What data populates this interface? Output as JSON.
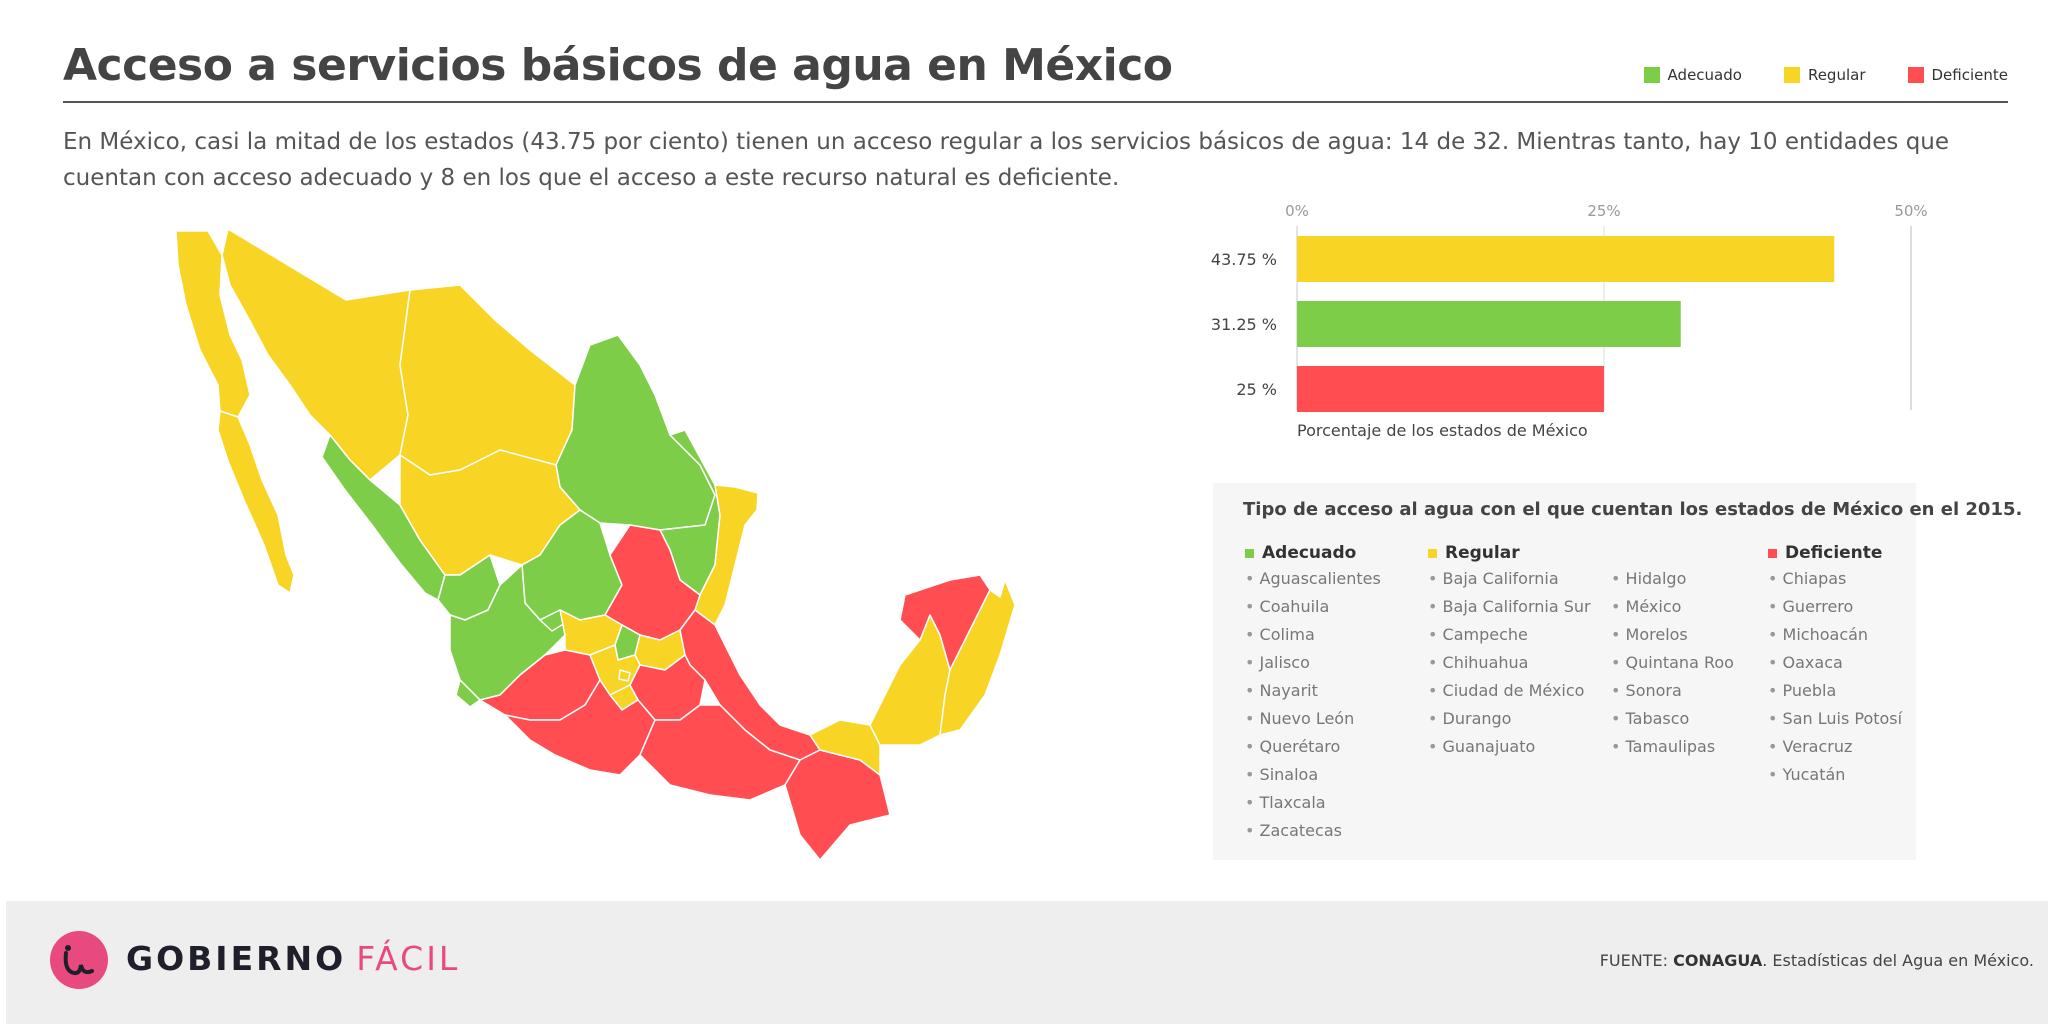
{
  "title": "Acceso a servicios básicos de agua en México",
  "subtitle": "En México, casi la mitad de los estados (43.75 por ciento) tienen un acceso regular a los servicios básicos de agua: 14 de 32. Mientras tanto, hay 10 entidades que cuentan con acceso adecuado y 8 en los que el acceso a este recurso natural es deficiente.",
  "legend": [
    {
      "label": "Adecuado",
      "color": "#7ecd48"
    },
    {
      "label": "Regular",
      "color": "#f8d424"
    },
    {
      "label": "Deficiente",
      "color": "#ff4d52"
    }
  ],
  "colors": {
    "adecuado": "#7ecd48",
    "regular": "#f8d424",
    "deficiente": "#ff4d52"
  },
  "chart_data": {
    "type": "bar",
    "orientation": "horizontal",
    "categories": [
      "Regular",
      "Adecuado",
      "Deficiente"
    ],
    "values": [
      43.75,
      31.25,
      25
    ],
    "value_labels": [
      "43.75 %",
      "31.25 %",
      "25 %"
    ],
    "colors": [
      "#f8d424",
      "#7ecd48",
      "#ff4d52"
    ],
    "xlim": [
      0,
      50
    ],
    "xticks": [
      0,
      25,
      50
    ],
    "xtick_labels": [
      "0%",
      "25%",
      "50%"
    ],
    "xlabel": "Porcentaje de los estados de México",
    "grid": true
  },
  "types_box": {
    "title": "Tipo de acceso al agua con el que cuentan los estados de México en el 2015.",
    "adecuado": {
      "label": "Adecuado",
      "items": [
        "Aguascalientes",
        "Coahuila",
        "Colima",
        "Jalisco",
        "Nayarit",
        "Nuevo León",
        "Querétaro",
        "Sinaloa",
        "Tlaxcala",
        "Zacatecas"
      ]
    },
    "regular": {
      "label": "Regular",
      "items_a": [
        "Baja California",
        "Baja California Sur",
        "Campeche",
        "Chihuahua",
        "Ciudad de México",
        "Durango",
        "Guanajuato"
      ],
      "items_b": [
        "Hidalgo",
        "México",
        "Morelos",
        "Quintana Roo",
        "Sonora",
        "Tabasco",
        "Tamaulipas"
      ]
    },
    "deficiente": {
      "label": "Deficiente",
      "items": [
        "Chiapas",
        "Guerrero",
        "Michoacán",
        "Oaxaca",
        "Puebla",
        "San Luis Potosí",
        "Veracruz",
        "Yucatán"
      ]
    }
  },
  "footer": {
    "brand_bold": "GOBIERNO",
    "brand_light": "FÁCIL",
    "source_prefix": "FUENTE: ",
    "source_org": "CONAGUA",
    "source_rest": ". Estadísticas del Agua en México."
  }
}
